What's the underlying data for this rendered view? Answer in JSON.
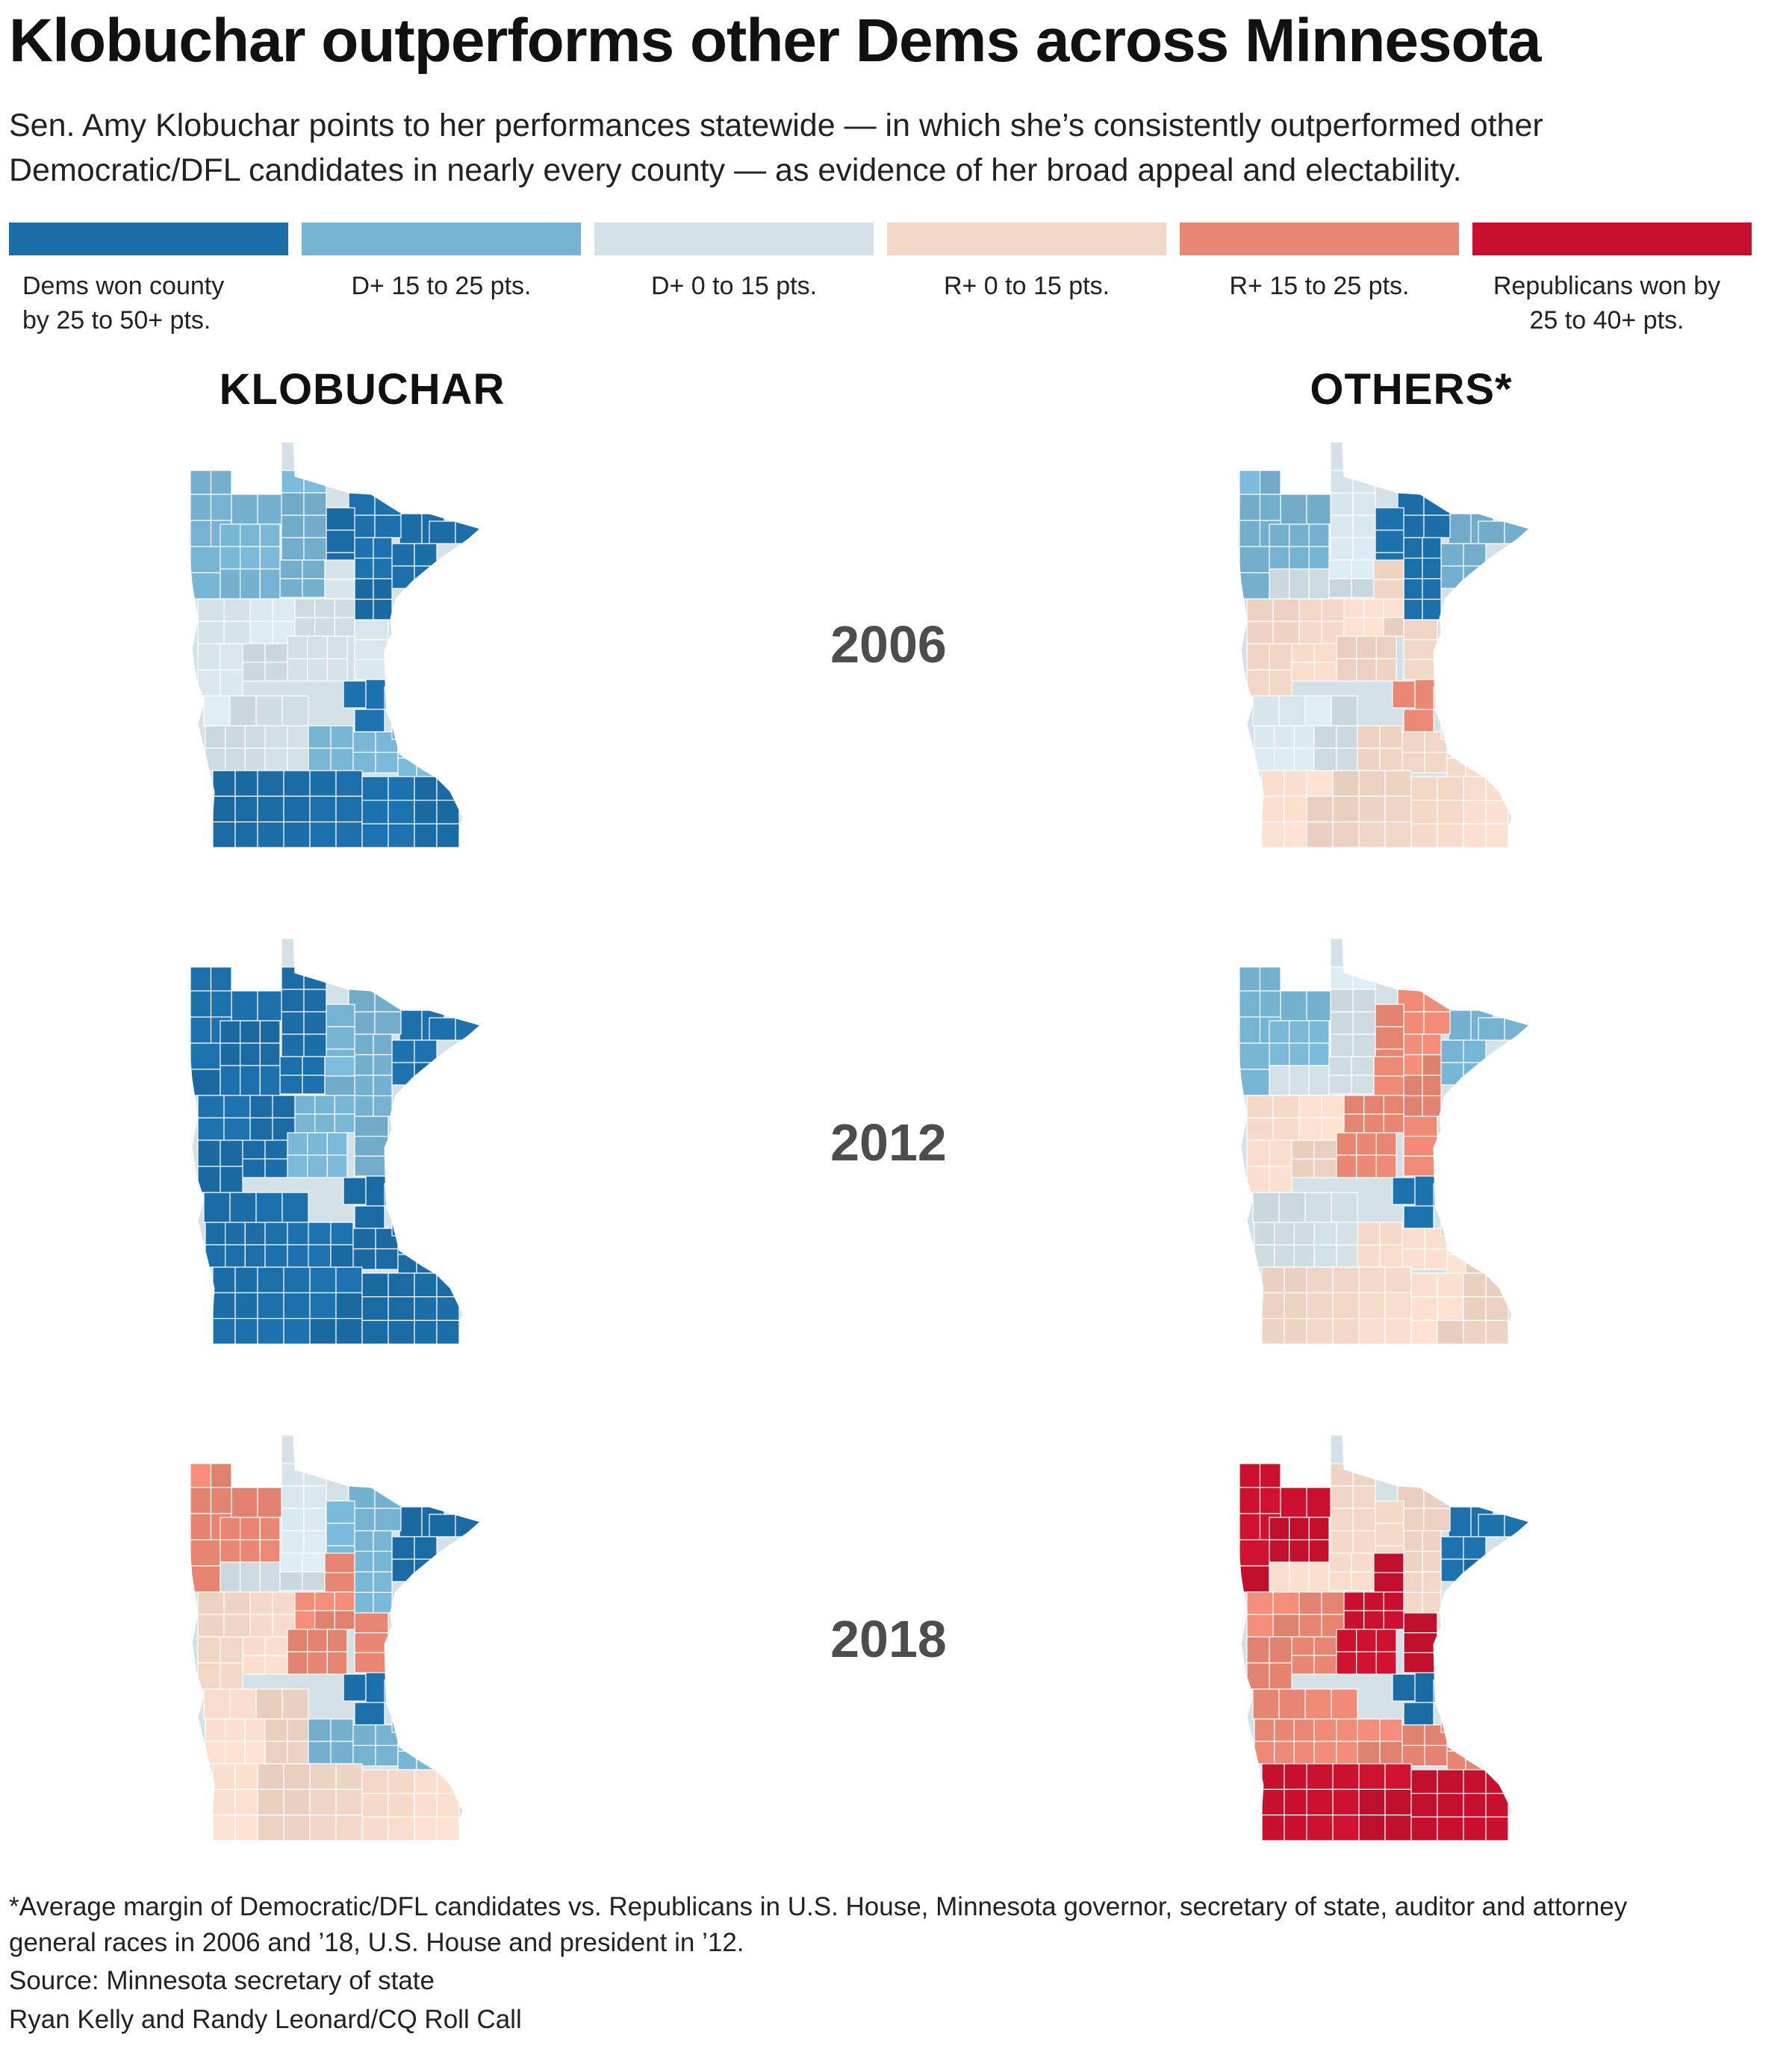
{
  "title": "Klobuchar outperforms other Dems across Minnesota",
  "subtitle": "Sen. Amy Klobuchar points to her performances statewide — in which she’s consistently outperformed other Democratic/DFL candidates in nearly every county — as evidence of her broad appeal and electability.",
  "legend": {
    "items": [
      {
        "label": "Dems won county by 25 to 50+ pts.",
        "color": "#1b6ea8"
      },
      {
        "label": "D+ 15 to 25 pts.",
        "color": "#76b3d2"
      },
      {
        "label": "D+ 0 to 15 pts.",
        "color": "#d4e2e8"
      },
      {
        "label": "R+ 0 to 15 pts.",
        "color": "#f3d8c8"
      },
      {
        "label": "R+ 15 to 25 pts.",
        "color": "#ea8774"
      },
      {
        "label": "Republicans won by 25 to 40+ pts.",
        "color": "#c8102e"
      }
    ]
  },
  "columns": {
    "left": "KLOBUCHAR",
    "right": "OTHERS*"
  },
  "years": [
    "2006",
    "2012",
    "2018"
  ],
  "maps": {
    "klobuchar_2006": {
      "north_shore": 0,
      "arrowhead": 0,
      "northwest": 1,
      "north_central": 1,
      "west_central": 2,
      "central": 2,
      "metro": 0,
      "southwest": 2,
      "southeast": 1,
      "south_border": 0
    },
    "others_2006": {
      "north_shore": 1,
      "arrowhead": 0,
      "northwest": 1,
      "north_central": 2,
      "west_central": 3,
      "central": 3,
      "metro": 4,
      "southwest": 2,
      "southeast": 3,
      "south_border": 3
    },
    "klobuchar_2012": {
      "north_shore": 0,
      "arrowhead": 1,
      "northwest": 0,
      "north_central": 0,
      "west_central": 0,
      "central": 1,
      "metro": 0,
      "southwest": 0,
      "southeast": 0,
      "south_border": 0
    },
    "others_2012": {
      "north_shore": 1,
      "arrowhead": 4,
      "northwest": 1,
      "north_central": 2,
      "west_central": 3,
      "central": 4,
      "metro": 0,
      "southwest": 2,
      "southeast": 3,
      "south_border": 3
    },
    "klobuchar_2018": {
      "north_shore": 0,
      "arrowhead": 1,
      "northwest": 4,
      "north_central": 2,
      "west_central": 3,
      "central": 4,
      "metro": 0,
      "southwest": 3,
      "southeast": 1,
      "south_border": 3
    },
    "others_2018": {
      "north_shore": 0,
      "arrowhead": 3,
      "northwest": 5,
      "north_central": 3,
      "west_central": 4,
      "central": 5,
      "metro": 0,
      "southwest": 4,
      "southeast": 4,
      "south_border": 5
    }
  },
  "footnote": "*Average margin of Democratic/DFL candidates vs. Republicans in U.S. House, Minnesota governor, secretary of state, auditor and attorney general races in 2006 and ’18, U.S. House and president in ’12.",
  "source": "Source: Minnesota secretary of state",
  "credit": "Ryan Kelly and Randy Leonard/CQ Roll Call"
}
